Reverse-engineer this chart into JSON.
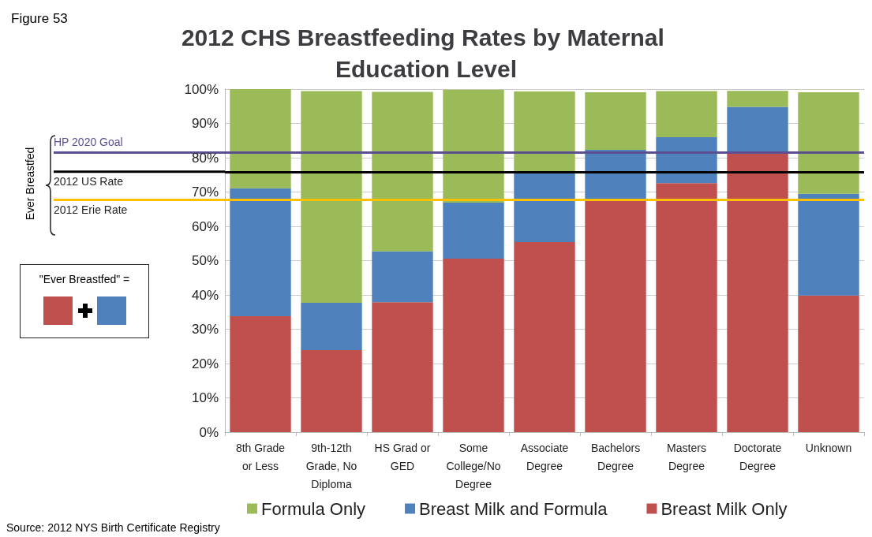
{
  "chart_data": {
    "type": "bar",
    "stacked": true,
    "title": "2012 CHS Breastfeeding Rates by Maternal Education Level",
    "categories": [
      "8th Grade\nor Less",
      "9th-12th\nGrade, No\nDiploma",
      "HS Grad or\nGED",
      "Some\nCollege/No\nDegree",
      "Associate\nDegree",
      "Bachelors\nDegree",
      "Masters\nDegree",
      "Doctorate\nDegree",
      "Unknown"
    ],
    "series": [
      {
        "name": "Breast Milk Only",
        "color": "#c0504d",
        "values": [
          33.8,
          23.9,
          37.9,
          50.6,
          55.4,
          67.4,
          72.6,
          81.2,
          39.8
        ]
      },
      {
        "name": "Breast Milk and Formula",
        "color": "#4f81bd",
        "values": [
          37.3,
          13.8,
          14.8,
          16.3,
          20.1,
          14.9,
          13.4,
          13.6,
          29.7
        ]
      },
      {
        "name": "Formula Only",
        "color": "#9bbb59",
        "values": [
          28.9,
          61.7,
          46.5,
          32.9,
          23.8,
          16.8,
          13.4,
          4.7,
          29.6
        ]
      }
    ],
    "ylim": [
      0,
      100
    ],
    "yticks": [
      {
        "value": 0,
        "label": "0%"
      },
      {
        "value": 10,
        "label": "10%"
      },
      {
        "value": 20,
        "label": "20%"
      },
      {
        "value": 30,
        "label": "30%"
      },
      {
        "value": 40,
        "label": "40%"
      },
      {
        "value": 50,
        "label": "50%"
      },
      {
        "value": 60,
        "label": "60%"
      },
      {
        "value": 70,
        "label": "70%"
      },
      {
        "value": 80,
        "label": "80%"
      },
      {
        "value": 90,
        "label": "90%"
      },
      {
        "value": 100,
        "label": "100%"
      }
    ],
    "ref_lines": [
      {
        "axis": "y",
        "value": 81.5,
        "label": "HP 2020 Goal",
        "color": "#5b4e91"
      },
      {
        "axis": "y",
        "value": 75.9,
        "label": "2012 US Rate",
        "color": "#000000"
      },
      {
        "axis": "y",
        "value": 67.7,
        "label": "2012 Erie Rate",
        "color": "#ffc000"
      }
    ],
    "annotations": [
      "Figure 53",
      "Ever Breastfed",
      "\"Ever Breastfed\" =",
      "Source: 2012 NYS Birth Certificate Registry"
    ],
    "grid": "y",
    "legend": "bottom"
  }
}
